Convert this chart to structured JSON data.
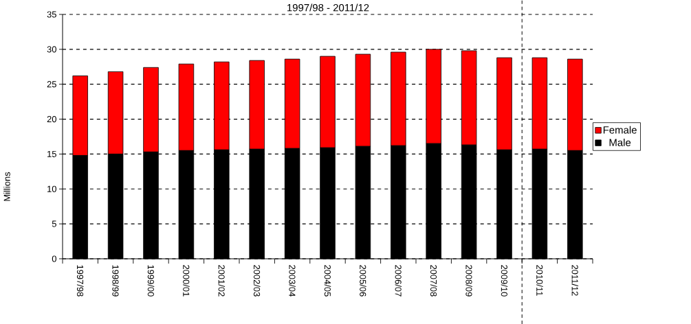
{
  "chart_data": {
    "type": "bar",
    "title": "1997/98 - 2011/12",
    "ylabel": "Millions",
    "stacked": true,
    "categories": [
      "1997/98",
      "1998/99",
      "1999/00",
      "2000/01",
      "2001/02",
      "2002/03",
      "2003/04",
      "2004/05",
      "2005/06",
      "2006/07",
      "2007/08",
      "2008/09",
      "2009/10",
      "2010/11",
      "2011/12"
    ],
    "series": [
      {
        "name": "Male",
        "color": "#000000",
        "values": [
          14.8,
          15.0,
          15.3,
          15.5,
          15.6,
          15.7,
          15.8,
          15.9,
          16.1,
          16.2,
          16.5,
          16.3,
          15.6,
          15.7,
          15.5
        ]
      },
      {
        "name": "Female",
        "color": "#ff0000",
        "values": [
          11.4,
          11.8,
          12.1,
          12.4,
          12.6,
          12.7,
          12.8,
          13.1,
          13.2,
          13.4,
          13.5,
          13.5,
          13.2,
          13.1,
          13.1
        ]
      }
    ],
    "ylim": [
      0,
      35
    ],
    "yticks": [
      0,
      5,
      10,
      15,
      20,
      25,
      30,
      35
    ],
    "grid": "y",
    "legend": "right"
  }
}
